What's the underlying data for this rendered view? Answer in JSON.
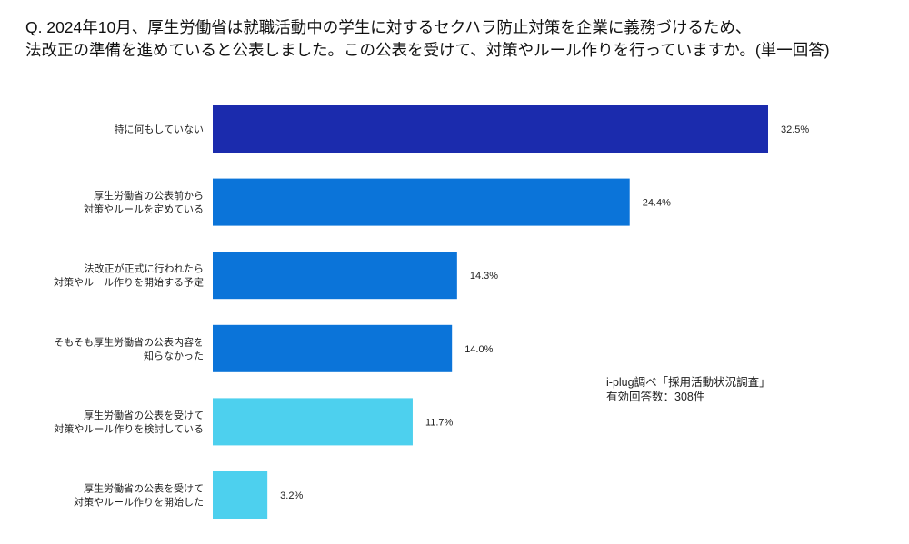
{
  "title_lines": [
    "Q. 2024年10月、厚生労働省は就職活動中の学生に対するセクハラ防止対策を企業に義務づけるため、",
    "法改正の準備を進めていると公表しました。この公表を受けて、対策やルール作りを行っていますか。(単一回答)"
  ],
  "source_note": [
    "i-plug調べ「採用活動状況調査」",
    "有効回答数：308件"
  ],
  "colors": {
    "dark": "#1b2bad",
    "mid": "#0b74d9",
    "light": "#4dd0ee"
  },
  "chart_data": {
    "type": "bar",
    "orientation": "horizontal",
    "title": "Q. 2024年10月、厚生労働省は就職活動中の学生に対するセクハラ防止対策を企業に義務づけるため、法改正の準備を進めていると公表しました。この公表を受けて、対策やルール作りを行っていますか。(単一回答)",
    "categories": [
      [
        "特に何もしていない"
      ],
      [
        "厚生労働省の公表前から",
        "対策やルールを定めている"
      ],
      [
        "法改正が正式に行われたら",
        "対策やルール作りを開始する予定"
      ],
      [
        "そもそも厚生労働省の公表内容を",
        "知らなかった"
      ],
      [
        "厚生労働省の公表を受けて",
        "対策やルール作りを検討している"
      ],
      [
        "厚生労働省の公表を受けて",
        "対策やルール作りを開始した"
      ]
    ],
    "values": [
      32.5,
      24.4,
      14.3,
      14.0,
      11.7,
      3.2
    ],
    "value_labels": [
      "32.5%",
      "24.4%",
      "14.3%",
      "14.0%",
      "11.7%",
      "3.2%"
    ],
    "bar_colors": [
      "dark",
      "mid",
      "mid",
      "mid",
      "light",
      "light"
    ],
    "unit": "%",
    "grid": false,
    "legend": "none"
  }
}
